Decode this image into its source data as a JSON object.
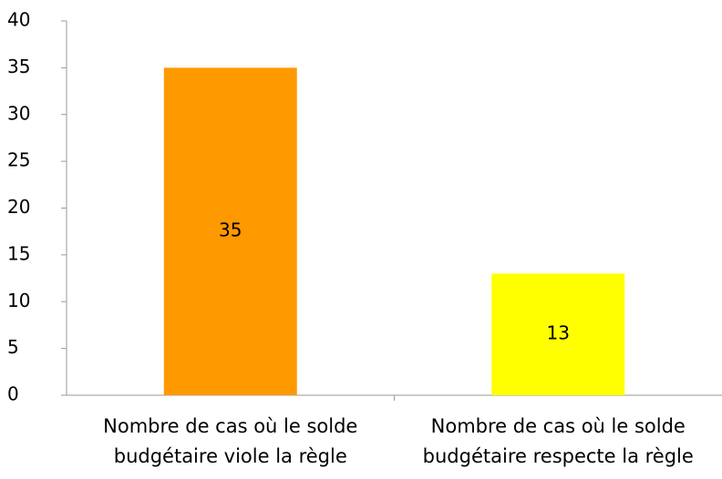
{
  "chart_data": {
    "type": "bar",
    "categories": [
      "Nombre de cas où le solde budgétaire viole la règle",
      "Nombre de cas où le solde budgétaire respecte la règle"
    ],
    "values": [
      35,
      13
    ],
    "colors": [
      "#ff9900",
      "#ffff00"
    ],
    "ylim": [
      0,
      40
    ],
    "yticks": [
      0,
      5,
      10,
      15,
      20,
      25,
      30,
      35,
      40
    ],
    "grid": false
  }
}
